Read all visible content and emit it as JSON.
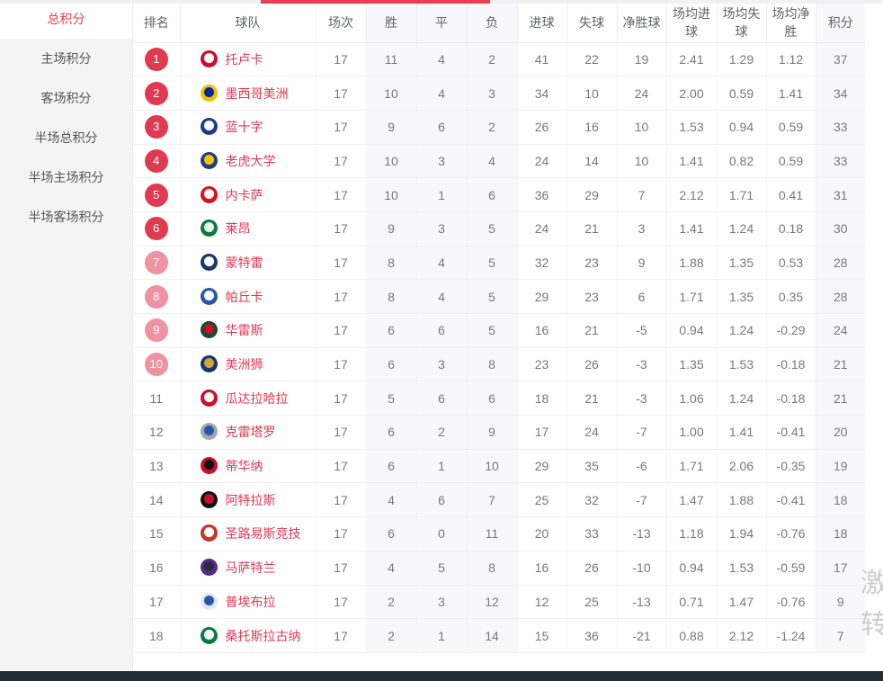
{
  "colors": {
    "accent_red": "#e83e56",
    "badge_solid": "#e03a52",
    "badge_light": "#ef93a0",
    "team_link": "#e03a52",
    "bottom_bar": "#232d37"
  },
  "watermark": {
    "line1": "激",
    "line2": "转"
  },
  "sidebar": {
    "items": [
      {
        "label": "总积分",
        "active": true
      },
      {
        "label": "主场积分",
        "active": false
      },
      {
        "label": "客场积分",
        "active": false
      },
      {
        "label": "半场总积分",
        "active": false
      },
      {
        "label": "半场主场积分",
        "active": false
      },
      {
        "label": "半场客场积分",
        "active": false
      }
    ]
  },
  "table": {
    "columns": [
      "排名",
      "球队",
      "场次",
      "胜",
      "平",
      "负",
      "进球",
      "失球",
      "净胜球",
      "场均进球",
      "场均失球",
      "场均净胜",
      "积分"
    ],
    "shaded_columns": [
      3,
      4,
      5,
      12
    ],
    "rows": [
      {
        "rank": "1",
        "badge": "solid",
        "team": "托卢卡",
        "logo": [
          "#c8102e",
          "#ffffff"
        ],
        "values": [
          "17",
          "11",
          "4",
          "2",
          "41",
          "22",
          "19",
          "2.41",
          "1.29",
          "1.12",
          "37"
        ]
      },
      {
        "rank": "2",
        "badge": "solid",
        "team": "墨西哥美洲",
        "logo": [
          "#f3c000",
          "#00249c"
        ],
        "values": [
          "17",
          "10",
          "4",
          "3",
          "34",
          "10",
          "24",
          "2.00",
          "0.59",
          "1.41",
          "34"
        ]
      },
      {
        "rank": "3",
        "badge": "solid",
        "team": "蓝十字",
        "logo": [
          "#1b3c8c",
          "#ffffff"
        ],
        "values": [
          "17",
          "9",
          "6",
          "2",
          "26",
          "16",
          "10",
          "1.53",
          "0.94",
          "0.59",
          "33"
        ]
      },
      {
        "rank": "4",
        "badge": "solid",
        "team": "老虎大学",
        "logo": [
          "#1f3f7a",
          "#ffc20e"
        ],
        "values": [
          "17",
          "10",
          "3",
          "4",
          "24",
          "14",
          "10",
          "1.41",
          "0.82",
          "0.59",
          "33"
        ]
      },
      {
        "rank": "5",
        "badge": "solid",
        "team": "内卡萨",
        "logo": [
          "#d6121f",
          "#ffffff"
        ],
        "values": [
          "17",
          "10",
          "1",
          "6",
          "36",
          "29",
          "7",
          "2.12",
          "1.71",
          "0.41",
          "31"
        ]
      },
      {
        "rank": "6",
        "badge": "solid",
        "team": "莱昂",
        "logo": [
          "#0a7a3c",
          "#eaf6ec"
        ],
        "values": [
          "17",
          "9",
          "3",
          "5",
          "24",
          "21",
          "3",
          "1.41",
          "1.24",
          "0.18",
          "30"
        ]
      },
      {
        "rank": "7",
        "badge": "light",
        "team": "蒙特雷",
        "logo": [
          "#16366c",
          "#ffffff"
        ],
        "values": [
          "17",
          "8",
          "4",
          "5",
          "32",
          "23",
          "9",
          "1.88",
          "1.35",
          "0.53",
          "28"
        ]
      },
      {
        "rank": "8",
        "badge": "light",
        "team": "帕丘卡",
        "logo": [
          "#2b55a5",
          "#ffffff"
        ],
        "values": [
          "17",
          "8",
          "4",
          "5",
          "29",
          "23",
          "6",
          "1.71",
          "1.35",
          "0.35",
          "28"
        ]
      },
      {
        "rank": "9",
        "badge": "light",
        "team": "华雷斯",
        "logo": [
          "#1a4a2e",
          "#c8102e"
        ],
        "values": [
          "17",
          "6",
          "6",
          "5",
          "16",
          "21",
          "-5",
          "0.94",
          "1.24",
          "-0.29",
          "24"
        ]
      },
      {
        "rank": "10",
        "badge": "light",
        "team": "美洲狮",
        "logo": [
          "#16366c",
          "#d4a43c"
        ],
        "values": [
          "17",
          "6",
          "3",
          "8",
          "23",
          "26",
          "-3",
          "1.35",
          "1.53",
          "-0.18",
          "21"
        ]
      },
      {
        "rank": "11",
        "badge": "plain",
        "team": "瓜达拉哈拉",
        "logo": [
          "#c8102e",
          "#ffffff"
        ],
        "values": [
          "17",
          "5",
          "6",
          "6",
          "18",
          "21",
          "-3",
          "1.06",
          "1.24",
          "-0.18",
          "21"
        ]
      },
      {
        "rank": "12",
        "badge": "plain",
        "team": "克雷塔罗",
        "logo": [
          "#9fa8b5",
          "#2b55a5"
        ],
        "values": [
          "17",
          "6",
          "2",
          "9",
          "17",
          "24",
          "-7",
          "1.00",
          "1.41",
          "-0.41",
          "20"
        ]
      },
      {
        "rank": "13",
        "badge": "plain",
        "team": "蒂华纳",
        "logo": [
          "#c8102e",
          "#111111"
        ],
        "values": [
          "17",
          "6",
          "1",
          "10",
          "29",
          "35",
          "-6",
          "1.71",
          "2.06",
          "-0.35",
          "19"
        ]
      },
      {
        "rank": "14",
        "badge": "plain",
        "team": "阿特拉斯",
        "logo": [
          "#111111",
          "#c8102e"
        ],
        "values": [
          "17",
          "4",
          "6",
          "7",
          "25",
          "32",
          "-7",
          "1.47",
          "1.88",
          "-0.41",
          "18"
        ]
      },
      {
        "rank": "15",
        "badge": "plain",
        "team": "圣路易斯竞技",
        "logo": [
          "#c0392b",
          "#ffffff"
        ],
        "values": [
          "17",
          "6",
          "0",
          "11",
          "20",
          "33",
          "-13",
          "1.18",
          "1.94",
          "-0.76",
          "18"
        ]
      },
      {
        "rank": "16",
        "badge": "plain",
        "team": "马萨特兰",
        "logo": [
          "#5b2a86",
          "#2a2a3a"
        ],
        "values": [
          "17",
          "4",
          "5",
          "8",
          "16",
          "26",
          "-10",
          "0.94",
          "1.53",
          "-0.59",
          "17"
        ]
      },
      {
        "rank": "17",
        "badge": "plain",
        "team": "普埃布拉",
        "logo": [
          "#dfe8f2",
          "#2b55a5"
        ],
        "values": [
          "17",
          "2",
          "3",
          "12",
          "12",
          "25",
          "-13",
          "0.71",
          "1.47",
          "-0.76",
          "9"
        ]
      },
      {
        "rank": "18",
        "badge": "plain",
        "team": "桑托斯拉古纳",
        "logo": [
          "#0a7a3c",
          "#ffffff"
        ],
        "values": [
          "17",
          "2",
          "1",
          "14",
          "15",
          "36",
          "-21",
          "0.88",
          "2.12",
          "-1.24",
          "7"
        ]
      }
    ]
  }
}
